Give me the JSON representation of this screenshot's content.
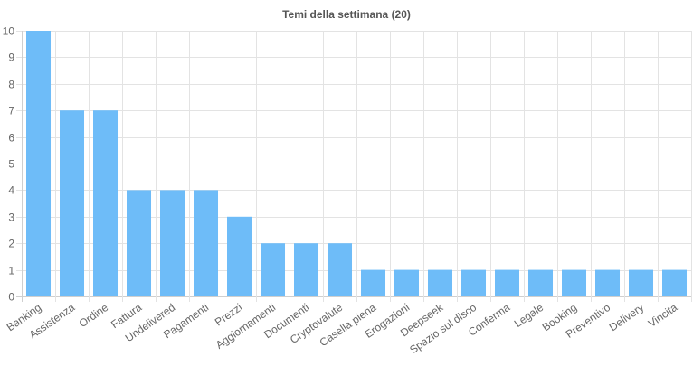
{
  "chart_data": {
    "type": "bar",
    "title": "Temi della settimana (20)",
    "xlabel": "",
    "ylabel": "",
    "categories": [
      "Banking",
      "Assistenza",
      "Ordine",
      "Fattura",
      "Undelivered",
      "Pagamenti",
      "Prezzi",
      "Aggiornamenti",
      "Documenti",
      "Cryptovalute",
      "Casella piena",
      "Erogazioni",
      "Deepseek",
      "Spazio sul disco",
      "Conferma",
      "Legale",
      "Booking",
      "Preventivo",
      "Delivery",
      "Vincita"
    ],
    "values": [
      10,
      7,
      7,
      4,
      4,
      4,
      3,
      2,
      2,
      2,
      1,
      1,
      1,
      1,
      1,
      1,
      1,
      1,
      1,
      1
    ],
    "ylim": [
      0,
      10
    ],
    "yticks": [
      0,
      1,
      2,
      3,
      4,
      5,
      6,
      7,
      8,
      9,
      10
    ],
    "grid": true,
    "legend": "none",
    "bar_color": "#6ebcf8",
    "grid_color": "#e3e3e3"
  }
}
